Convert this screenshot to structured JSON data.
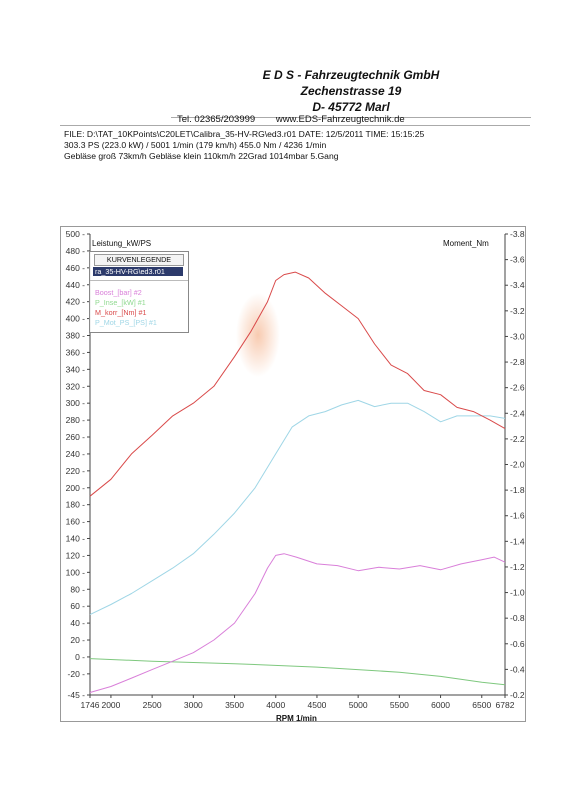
{
  "header": {
    "company": "E D S - Fahrzeugtechnik GmbH",
    "street": "Zechenstrasse 19",
    "city": "D- 45772 Marl",
    "phone": "Tel. 02365/203999",
    "web": "www.EDS-Fahrzeugtechnik.de"
  },
  "info": {
    "line1": "FILE: D:\\TAT_10KPoints\\C20LET\\Calibra_35-HV-RG\\ed3.r01  DATE: 12/5/2011  TIME: 15:15:25",
    "line2": "303.3 PS  (223.0 kW) / 5001 1/min (179 km/h)     455.0 Nm / 4236 1/min",
    "line3": "Gebläse groß 73km/h Gebläse klein 110km/h    22Grad 1014mbar  5.Gang"
  },
  "legend": {
    "title": "KURVENLEGENDE",
    "file": "ra_35-HV-RG\\ed3.r01",
    "items": [
      {
        "label": "Boost_[bar] #2",
        "color": "#d97fd9"
      },
      {
        "label": "P_Inse_[kW] #1",
        "color": "#8fd98f"
      },
      {
        "label": "M_korr_[Nm] #1",
        "color": "#d94a4a"
      },
      {
        "label": "P_Mot_PS_[PS] #1",
        "color": "#9fd6e6"
      }
    ]
  },
  "chart_data": {
    "type": "line",
    "xlabel": "RPM  1/min",
    "ylabel_left": "Leistung_kW/PS",
    "ylabel_right": "Moment_Nm",
    "xlim": [
      1746,
      6782
    ],
    "xticks": [
      1746,
      2000,
      2500,
      3000,
      3500,
      4000,
      4500,
      5000,
      5500,
      6000,
      6500,
      6782
    ],
    "ylim_left": [
      -45,
      500
    ],
    "yticks_left": [
      -45,
      -20,
      0,
      20,
      40,
      60,
      80,
      100,
      120,
      140,
      160,
      180,
      200,
      220,
      240,
      260,
      280,
      300,
      320,
      340,
      360,
      380,
      400,
      420,
      440,
      460,
      480,
      500
    ],
    "ylim_right": [
      -0.2,
      -3.8
    ],
    "yticks_right": [
      -0.2,
      -0.4,
      -0.6,
      -0.8,
      -1.0,
      -1.2,
      -1.4,
      -1.6,
      -1.8,
      -2.0,
      -2.2,
      -2.4,
      -2.6,
      -2.8,
      -3.0,
      -3.2,
      -3.4,
      -3.6,
      -3.8
    ],
    "series": [
      {
        "name": "M_korr_[Nm] #1",
        "color": "#d94a4a",
        "x": [
          1746,
          2000,
          2250,
          2500,
          2750,
          3000,
          3250,
          3500,
          3700,
          3900,
          4000,
          4100,
          4236,
          4400,
          4600,
          4800,
          5000,
          5200,
          5400,
          5600,
          5800,
          6000,
          6200,
          6400,
          6600,
          6782
        ],
        "y": [
          190,
          210,
          240,
          262,
          285,
          300,
          320,
          355,
          385,
          420,
          445,
          452,
          455,
          448,
          430,
          415,
          400,
          370,
          345,
          335,
          315,
          310,
          295,
          290,
          280,
          270
        ]
      },
      {
        "name": "P_Mot_PS_[PS] #1",
        "color": "#9fd6e6",
        "x": [
          1746,
          2000,
          2250,
          2500,
          2750,
          3000,
          3250,
          3500,
          3750,
          4000,
          4200,
          4400,
          4600,
          4800,
          5001,
          5200,
          5400,
          5600,
          5800,
          6000,
          6200,
          6400,
          6600,
          6782
        ],
        "y": [
          50,
          62,
          75,
          90,
          105,
          122,
          145,
          170,
          200,
          240,
          272,
          285,
          290,
          298,
          303.3,
          296,
          300,
          300,
          290,
          278,
          285,
          285,
          285,
          282
        ]
      },
      {
        "name": "Boost_[bar] #2",
        "color": "#d97fd9",
        "x": [
          1746,
          2000,
          2250,
          2500,
          2750,
          3000,
          3250,
          3500,
          3750,
          3900,
          4000,
          4100,
          4250,
          4500,
          4750,
          5000,
          5250,
          5500,
          5750,
          6000,
          6250,
          6500,
          6650,
          6782
        ],
        "y": [
          -42,
          -35,
          -25,
          -15,
          -5,
          5,
          20,
          40,
          75,
          105,
          120,
          122,
          118,
          110,
          108,
          102,
          106,
          104,
          108,
          103,
          110,
          115,
          118,
          112
        ]
      },
      {
        "name": "P_Inse_[kW] #1",
        "color": "#7ec87e",
        "x": [
          1746,
          2500,
          3500,
          4500,
          5500,
          6000,
          6500,
          6782
        ],
        "y": [
          -2,
          -5,
          -8,
          -12,
          -18,
          -23,
          -30,
          -33
        ]
      }
    ]
  }
}
